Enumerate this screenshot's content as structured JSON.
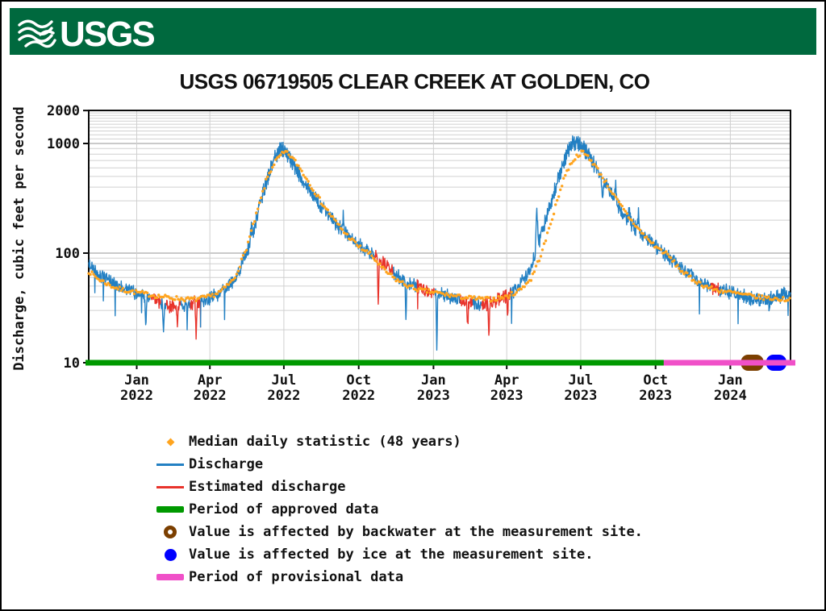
{
  "header": {
    "logo_text": "USGS"
  },
  "title": "USGS 06719505 CLEAR CREEK AT GOLDEN, CO",
  "y_axis": {
    "label": "Discharge, cubic feet per second",
    "scale": "log",
    "ticks": [
      {
        "value": 2000,
        "label": "2000"
      },
      {
        "value": 1000,
        "label": "1000"
      },
      {
        "value": 100,
        "label": "100"
      },
      {
        "value": 10,
        "label": "10"
      }
    ]
  },
  "x_axis": {
    "ticks": [
      {
        "date": "2022-01-01",
        "month": "Jan",
        "year": "2022"
      },
      {
        "date": "2022-04-01",
        "month": "Apr",
        "year": "2022"
      },
      {
        "date": "2022-07-01",
        "month": "Jul",
        "year": "2022"
      },
      {
        "date": "2022-10-01",
        "month": "Oct",
        "year": "2022"
      },
      {
        "date": "2023-01-01",
        "month": "Jan",
        "year": "2023"
      },
      {
        "date": "2023-04-01",
        "month": "Apr",
        "year": "2023"
      },
      {
        "date": "2023-07-01",
        "month": "Jul",
        "year": "2023"
      },
      {
        "date": "2023-10-01",
        "month": "Oct",
        "year": "2023"
      },
      {
        "date": "2024-01-01",
        "month": "Jan",
        "year": "2024"
      }
    ]
  },
  "legend": {
    "items": [
      {
        "label": "Median daily statistic (48 years)",
        "marker": "diamond",
        "color": "#FFA41E"
      },
      {
        "label": "Discharge",
        "marker": "line",
        "color": "#2380C3"
      },
      {
        "label": "Estimated discharge",
        "marker": "line",
        "color": "#E8332B"
      },
      {
        "label": "Period of approved data",
        "marker": "bar",
        "color": "#009900"
      },
      {
        "label": "Value is affected by backwater at the measurement site.",
        "marker": "donut",
        "color": "#7B3F00"
      },
      {
        "label": "Value is affected by ice at the measurement site.",
        "marker": "circle",
        "color": "#0000FF"
      },
      {
        "label": "Period of provisional data",
        "marker": "bar",
        "color": "#F050C8"
      }
    ]
  },
  "colors": {
    "header_green": "#00693E",
    "discharge": "#2380C3",
    "median": "#FFA41E",
    "estimated": "#E8332B",
    "approved": "#009900",
    "provisional": "#F050C8",
    "backwater": "#7B3F00",
    "ice": "#0000FF",
    "grid_minor": "#D0D0D0",
    "grid_major": "#ABABAB",
    "frame": "#0A0A0A",
    "text": "#111111"
  },
  "chart_data": {
    "type": "line",
    "title": "USGS 06719505 CLEAR CREEK AT GOLDEN, CO",
    "xlabel": "",
    "ylabel": "Discharge, cubic feet per second",
    "yscale": "log",
    "ylim": [
      10,
      2000
    ],
    "x_range": [
      "2021-11-03",
      "2024-03-15"
    ],
    "grid": true,
    "legend_position": "bottom",
    "series": [
      {
        "name": "Discharge",
        "units": "cfs",
        "points": [
          [
            "2021-11-03",
            78
          ],
          [
            "2021-11-20",
            60
          ],
          [
            "2021-12-10",
            50
          ],
          [
            "2022-01-01",
            43
          ],
          [
            "2022-01-20",
            38
          ],
          [
            "2022-02-10",
            33
          ],
          [
            "2022-03-01",
            34
          ],
          [
            "2022-03-20",
            36
          ],
          [
            "2022-04-10",
            42
          ],
          [
            "2022-05-01",
            55
          ],
          [
            "2022-05-20",
            120
          ],
          [
            "2022-06-05",
            350
          ],
          [
            "2022-06-18",
            700
          ],
          [
            "2022-06-27",
            900
          ],
          [
            "2022-07-03",
            850
          ],
          [
            "2022-07-12",
            650
          ],
          [
            "2022-07-25",
            450
          ],
          [
            "2022-08-10",
            300
          ],
          [
            "2022-09-01",
            190
          ],
          [
            "2022-09-20",
            140
          ],
          [
            "2022-10-10",
            105
          ],
          [
            "2022-11-01",
            80
          ],
          [
            "2022-11-20",
            60
          ],
          [
            "2022-12-10",
            50
          ],
          [
            "2023-01-01",
            44
          ],
          [
            "2023-01-20",
            40
          ],
          [
            "2023-02-10",
            36
          ],
          [
            "2023-03-05",
            34
          ],
          [
            "2023-03-25",
            38
          ],
          [
            "2023-04-15",
            48
          ],
          [
            "2023-05-01",
            75
          ],
          [
            "2023-05-15",
            160
          ],
          [
            "2023-06-01",
            420
          ],
          [
            "2023-06-12",
            750
          ],
          [
            "2023-06-20",
            980
          ],
          [
            "2023-06-26",
            1050
          ],
          [
            "2023-07-02",
            950
          ],
          [
            "2023-07-10",
            800
          ],
          [
            "2023-07-20",
            600
          ],
          [
            "2023-08-01",
            420
          ],
          [
            "2023-08-15",
            280
          ],
          [
            "2023-09-01",
            185
          ],
          [
            "2023-09-20",
            135
          ],
          [
            "2023-10-10",
            100
          ],
          [
            "2023-11-01",
            75
          ],
          [
            "2023-11-20",
            58
          ],
          [
            "2023-12-10",
            48
          ],
          [
            "2024-01-01",
            44
          ],
          [
            "2024-01-20",
            40
          ],
          [
            "2024-02-10",
            37
          ],
          [
            "2024-03-01",
            40
          ],
          [
            "2024-03-15",
            45
          ]
        ],
        "low_flow_dips": [
          [
            "2022-01-12",
            20
          ],
          [
            "2022-02-03",
            17
          ],
          [
            "2022-02-20",
            22
          ],
          [
            "2022-03-15",
            16
          ],
          [
            "2022-10-25",
            30
          ],
          [
            "2022-11-28",
            24
          ],
          [
            "2023-01-05",
            13
          ],
          [
            "2023-02-12",
            22
          ],
          [
            "2023-03-10",
            16
          ],
          [
            "2023-04-02",
            28
          ],
          [
            "2024-02-18",
            30
          ]
        ],
        "storm_spikes": [
          [
            "2022-05-22",
            170
          ],
          [
            "2022-08-20",
            260
          ],
          [
            "2022-09-12",
            210
          ],
          [
            "2023-05-08",
            260
          ],
          [
            "2023-07-28",
            300
          ],
          [
            "2023-08-13",
            400
          ],
          [
            "2023-08-30",
            260
          ],
          [
            "2023-09-10",
            230
          ]
        ]
      },
      {
        "name": "Median daily statistic (48 years)",
        "units": "cfs",
        "seasonal_points_by_month_day": [
          [
            "01-01",
            44
          ],
          [
            "01-15",
            42
          ],
          [
            "02-01",
            40
          ],
          [
            "02-15",
            39
          ],
          [
            "03-01",
            38
          ],
          [
            "03-15",
            38
          ],
          [
            "04-01",
            40
          ],
          [
            "04-15",
            45
          ],
          [
            "05-01",
            58
          ],
          [
            "05-15",
            105
          ],
          [
            "06-01",
            280
          ],
          [
            "06-10",
            480
          ],
          [
            "06-20",
            680
          ],
          [
            "06-28",
            790
          ],
          [
            "07-03",
            830
          ],
          [
            "07-10",
            760
          ],
          [
            "07-18",
            640
          ],
          [
            "08-01",
            440
          ],
          [
            "08-15",
            300
          ],
          [
            "09-01",
            200
          ],
          [
            "09-15",
            150
          ],
          [
            "10-01",
            115
          ],
          [
            "10-15",
            98
          ],
          [
            "11-01",
            70
          ],
          [
            "11-15",
            58
          ],
          [
            "12-01",
            50
          ],
          [
            "12-15",
            46
          ],
          [
            "12-31",
            44
          ]
        ]
      }
    ],
    "estimated_discharge_segments": [
      [
        "2022-01-18",
        "2022-01-30"
      ],
      [
        "2022-02-06",
        "2022-02-24"
      ],
      [
        "2022-03-08",
        "2022-03-20"
      ],
      [
        "2022-10-20",
        "2022-11-12"
      ],
      [
        "2022-12-12",
        "2023-01-02"
      ],
      [
        "2023-02-03",
        "2023-02-18"
      ],
      [
        "2023-03-01",
        "2023-04-05"
      ],
      [
        "2023-12-08",
        "2023-12-18"
      ]
    ],
    "approved_period": [
      "2021-11-03",
      "2023-10-15"
    ],
    "provisional_period": [
      "2023-10-15",
      "2024-03-15"
    ],
    "backwater_affected_period": [
      "2024-01-14",
      "2024-02-11"
    ],
    "ice_affected_period": [
      "2024-02-14",
      "2024-03-10"
    ]
  }
}
